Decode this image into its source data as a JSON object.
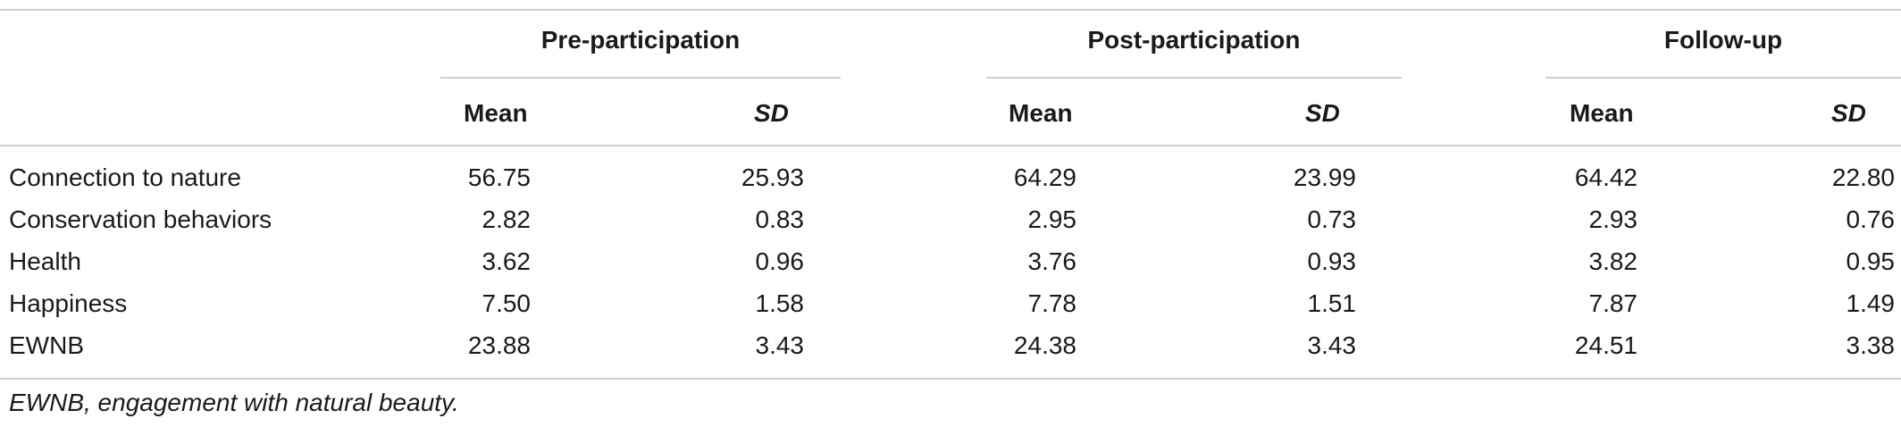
{
  "table": {
    "groups": [
      "Pre-participation",
      "Post-participation",
      "Follow-up"
    ],
    "subheaders": [
      "Mean",
      "SD"
    ],
    "rows": [
      {
        "label": "Connection to nature",
        "values": [
          "56.75",
          "25.93",
          "64.29",
          "23.99",
          "64.42",
          "22.80"
        ]
      },
      {
        "label": "Conservation behaviors",
        "values": [
          "2.82",
          "0.83",
          "2.95",
          "0.73",
          "2.93",
          "0.76"
        ]
      },
      {
        "label": "Health",
        "values": [
          "3.62",
          "0.96",
          "3.76",
          "0.93",
          "3.82",
          "0.95"
        ]
      },
      {
        "label": "Happiness",
        "values": [
          "7.50",
          "1.58",
          "7.78",
          "1.51",
          "7.87",
          "1.49"
        ]
      },
      {
        "label": "EWNB",
        "values": [
          "23.88",
          "3.43",
          "24.38",
          "3.43",
          "24.51",
          "3.38"
        ]
      }
    ],
    "footnote": "EWNB, engagement with natural beauty."
  }
}
